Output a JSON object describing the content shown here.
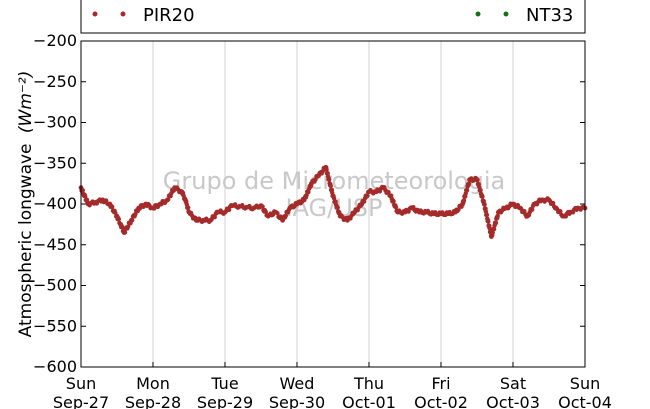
{
  "chart_data": {
    "type": "scatter",
    "title": "",
    "ylabel": "Atmospheric longwave",
    "ylabel_unit": "(Wm⁻²)",
    "ylim": [
      -600,
      -200
    ],
    "yticks": [
      -200,
      -250,
      -300,
      -350,
      -400,
      -450,
      -500,
      -550,
      -600
    ],
    "ytick_labels": [
      "−200",
      "−250",
      "−300",
      "−350",
      "−400",
      "−450",
      "−500",
      "−550",
      "−600"
    ],
    "xlim": [
      0,
      7
    ],
    "x_unit": "days since Sun Sep-27",
    "xticks": [
      {
        "day": "Sun",
        "date": "Sep-27"
      },
      {
        "day": "Mon",
        "date": "Sep-28"
      },
      {
        "day": "Tue",
        "date": "Sep-29"
      },
      {
        "day": "Wed",
        "date": "Sep-30"
      },
      {
        "day": "Thu",
        "date": "Oct-01"
      },
      {
        "day": "Fri",
        "date": "Oct-02"
      },
      {
        "day": "Sat",
        "date": "Oct-03"
      },
      {
        "day": "Sun",
        "date": "Oct-04"
      }
    ],
    "grid": "vertical",
    "legend_placement": "top",
    "watermark": [
      "Grupo de Micrometeorologia",
      "IAG/USP"
    ],
    "series": [
      {
        "name": "PIR20",
        "color": "#a52a2a",
        "x": [
          0.0,
          0.1,
          0.2,
          0.3,
          0.4,
          0.5,
          0.55,
          0.6,
          0.7,
          0.8,
          0.9,
          1.0,
          1.1,
          1.2,
          1.3,
          1.4,
          1.45,
          1.5,
          1.6,
          1.7,
          1.8,
          1.9,
          2.0,
          2.1,
          2.2,
          2.3,
          2.4,
          2.5,
          2.6,
          2.7,
          2.8,
          2.9,
          3.0,
          3.1,
          3.2,
          3.3,
          3.4,
          3.5,
          3.6,
          3.7,
          3.8,
          3.9,
          4.0,
          4.1,
          4.2,
          4.3,
          4.4,
          4.5,
          4.6,
          4.7,
          4.8,
          4.9,
          5.0,
          5.1,
          5.2,
          5.3,
          5.4,
          5.5,
          5.6,
          5.7,
          5.8,
          5.9,
          6.0,
          6.1,
          6.2,
          6.3,
          6.4,
          6.5,
          6.6,
          6.7,
          6.8,
          6.9,
          7.0
        ],
        "y": [
          -380,
          -400,
          -398,
          -395,
          -400,
          -415,
          -425,
          -435,
          -420,
          -405,
          -400,
          -405,
          -400,
          -395,
          -380,
          -385,
          -395,
          -410,
          -420,
          -420,
          -420,
          -410,
          -410,
          -402,
          -403,
          -404,
          -405,
          -402,
          -415,
          -410,
          -420,
          -405,
          -400,
          -395,
          -375,
          -365,
          -355,
          -390,
          -415,
          -420,
          -410,
          -400,
          -385,
          -385,
          -380,
          -390,
          -410,
          -410,
          -405,
          -410,
          -410,
          -412,
          -412,
          -412,
          -410,
          -400,
          -370,
          -370,
          -400,
          -440,
          -410,
          -405,
          -400,
          -405,
          -415,
          -400,
          -395,
          -395,
          -405,
          -415,
          -410,
          -405,
          -405
        ]
      },
      {
        "name": "NT33",
        "color": "#1a6e1a",
        "x": [],
        "y": []
      }
    ]
  }
}
